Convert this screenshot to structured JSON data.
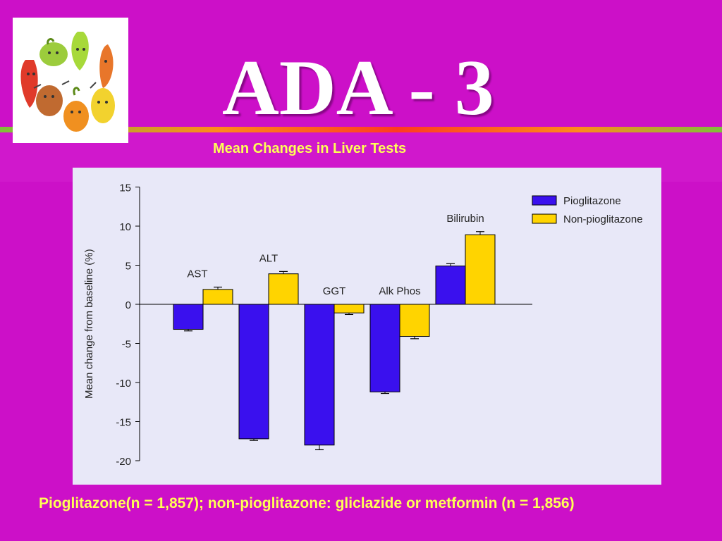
{
  "slide": {
    "title": "ADA - 3",
    "subtitle": "Mean Changes in Liver Tests",
    "caption": "Pioglitazone(n = 1,857); non-pioglitazone: gliclazide or metformin (n = 1,856)",
    "logo_icon": "vegetable-characters-circle-icon"
  },
  "colors": {
    "background": "#cc10c8",
    "text_yellow": "#ffff55",
    "pioglitazone": "#3a10ee",
    "non_pioglitazone": "#ffd400"
  },
  "chart_data": {
    "type": "bar",
    "title": "",
    "xlabel": "",
    "ylabel": "Mean change from baseline (%)",
    "ylim": [
      -20,
      15
    ],
    "yticks": [
      15,
      10,
      5,
      0,
      -5,
      -10,
      -15,
      -20
    ],
    "categories": [
      "AST",
      "ALT",
      "GGT",
      "Alk Phos",
      "Bilirubin"
    ],
    "series": [
      {
        "name": "Pioglitazone",
        "color": "#3a10ee",
        "values": [
          -3.2,
          -17.2,
          -18.0,
          -11.2,
          4.9
        ],
        "errors": [
          0.2,
          0.2,
          0.6,
          0.2,
          0.3
        ]
      },
      {
        "name": "Non-pioglitazone",
        "color": "#ffd400",
        "values": [
          1.9,
          3.9,
          -1.1,
          -4.1,
          8.9
        ],
        "errors": [
          0.3,
          0.3,
          0.2,
          0.3,
          0.4
        ]
      }
    ],
    "legend_position": "top-right",
    "grid": false
  }
}
